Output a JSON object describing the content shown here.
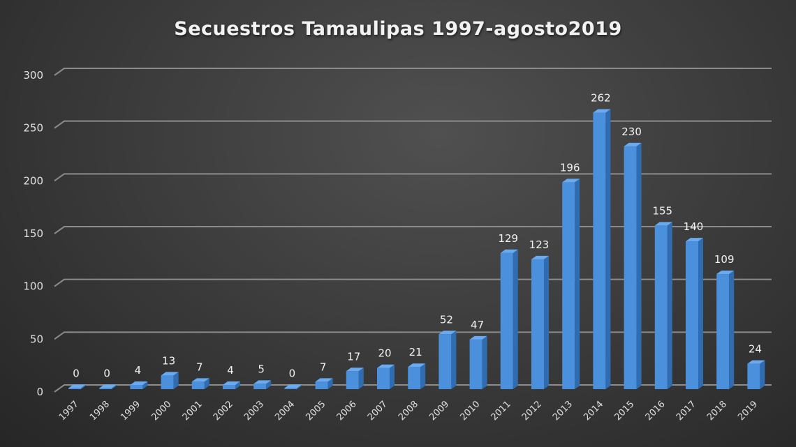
{
  "chart_data": {
    "type": "bar",
    "title": "Secuestros Tamaulipas 1997-agosto2019",
    "xlabel": "",
    "ylabel": "",
    "categories": [
      "1997",
      "1998",
      "1999",
      "2000",
      "2001",
      "2002",
      "2003",
      "2004",
      "2005",
      "2006",
      "2007",
      "2008",
      "2009",
      "2010",
      "2011",
      "2012",
      "2013",
      "2014",
      "2015",
      "2016",
      "2017",
      "2018",
      "2019"
    ],
    "values": [
      0,
      0,
      4,
      13,
      7,
      4,
      5,
      0,
      7,
      17,
      20,
      21,
      52,
      47,
      129,
      123,
      196,
      262,
      230,
      155,
      140,
      109,
      24
    ],
    "ylim": [
      0,
      300
    ],
    "yticks": [
      0,
      50,
      100,
      150,
      200,
      250,
      300
    ],
    "grid": true,
    "legend": null,
    "style": "3d-column",
    "colors": {
      "bar": "#4a90dc",
      "bar_side": "#2f6cb0",
      "bar_top": "#6aaaf0",
      "gridline": "#8c8c8c",
      "text": "#e6e6e6"
    }
  }
}
